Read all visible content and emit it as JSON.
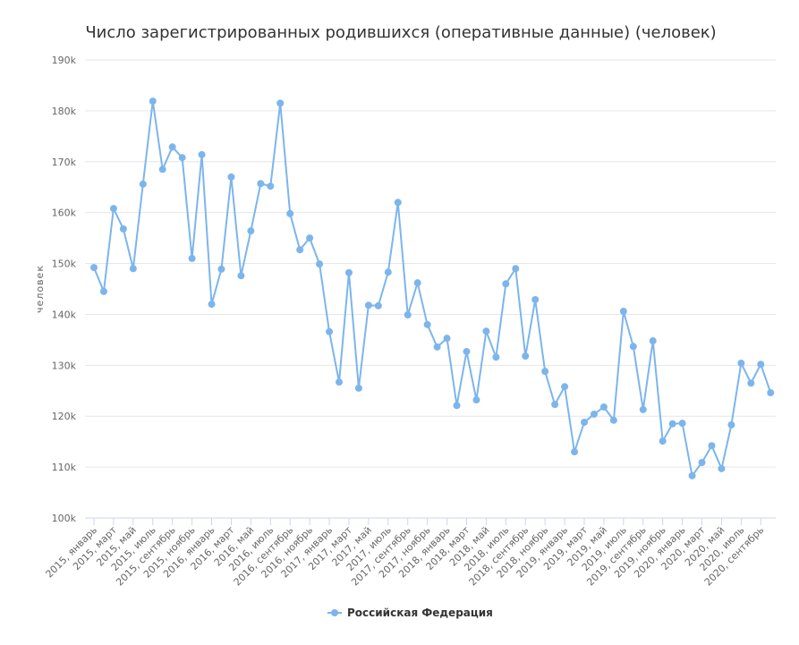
{
  "chart_data": {
    "type": "line",
    "title": "Число зарегистрированных родившихся (оперативные данные) (человек)",
    "xlabel": "",
    "ylabel": "человек",
    "ylim": [
      100000,
      190000
    ],
    "yticks": [
      100000,
      110000,
      120000,
      130000,
      140000,
      150000,
      160000,
      170000,
      180000,
      190000
    ],
    "ytick_labels": [
      "100k",
      "110k",
      "120k",
      "130k",
      "140k",
      "150k",
      "160k",
      "170k",
      "180k",
      "190k"
    ],
    "grid": true,
    "legend": "bottom-center",
    "x_start_year": 2015,
    "months_labeled": [
      "январь",
      "март",
      "май",
      "июль",
      "сентябрь",
      "ноябрь"
    ],
    "x_tick_labels": [
      "2015, январь",
      "2015, март",
      "2015, май",
      "2015, июль",
      "2015, сентябрь",
      "2015, ноябрь",
      "2016, январь",
      "2016, март",
      "2016, май",
      "2016, июль",
      "2016, сентябрь",
      "2016, ноябрь",
      "2017, январь",
      "2017, март",
      "2017, май",
      "2017, июль",
      "2017, сентябрь",
      "2017, ноябрь",
      "2018, январь",
      "2018, март",
      "2018, май",
      "2018, июль",
      "2018, сентябрь",
      "2018, ноябрь",
      "2019, январь",
      "2019, март",
      "2019, май",
      "2019, июль",
      "2019, сентябрь",
      "2019, ноябрь",
      "2020, январь",
      "2020, март",
      "2020, май",
      "2020, июль",
      "2020, сентябрь"
    ],
    "series": [
      {
        "name": "Российская Федерация",
        "color": "#7cb5ec",
        "values": [
          149200,
          144500,
          160800,
          156800,
          149000,
          165600,
          181900,
          168500,
          172900,
          170800,
          151000,
          171400,
          142000,
          148900,
          167000,
          147600,
          156400,
          165700,
          165200,
          181500,
          159800,
          152700,
          155000,
          149900,
          136600,
          126700,
          148200,
          125500,
          141800,
          141700,
          148300,
          162000,
          139900,
          146200,
          138000,
          133600,
          135300,
          122100,
          132700,
          123200,
          136700,
          131600,
          146000,
          149000,
          131800,
          142900,
          128800,
          122300,
          125800,
          113000,
          118800,
          120400,
          121800,
          119200,
          140600,
          133700,
          121300,
          134800,
          115100,
          118500,
          118600,
          108300,
          110900,
          114200,
          109700,
          118300,
          130400,
          126500,
          130200,
          124600
        ]
      }
    ]
  }
}
